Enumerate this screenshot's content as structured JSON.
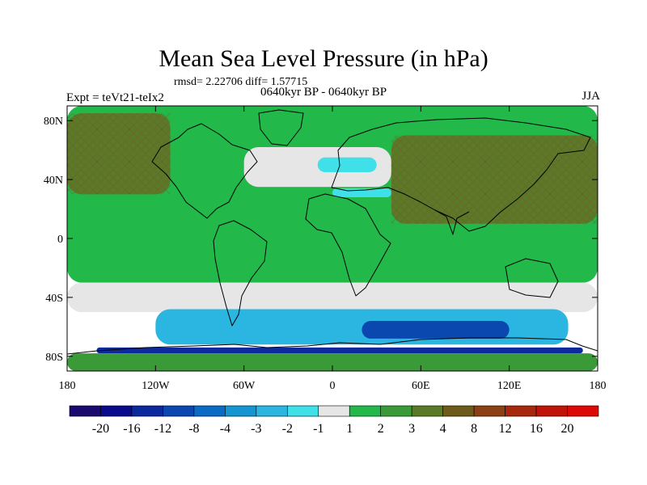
{
  "chart_data": {
    "type": "heatmap",
    "title": "Mean Sea Level Pressure (in hPa)",
    "stats_text": "rmsd= 2.22706  diff= 1.57715",
    "period_text": "0640kyr BP - 0640kyr BP",
    "experiment_text": "Expt = teVt21-teIx2",
    "season_text": "JJA",
    "xlim": [
      -180,
      180
    ],
    "ylim": [
      -90,
      90
    ],
    "x_ticks": [
      {
        "value": -180,
        "label": "180"
      },
      {
        "value": -120,
        "label": "120W"
      },
      {
        "value": -60,
        "label": "60W"
      },
      {
        "value": 0,
        "label": "0"
      },
      {
        "value": 60,
        "label": "60E"
      },
      {
        "value": 120,
        "label": "120E"
      },
      {
        "value": 180,
        "label": "180"
      }
    ],
    "y_ticks": [
      {
        "value": 80,
        "label": "80N"
      },
      {
        "value": 40,
        "label": "40N"
      },
      {
        "value": 0,
        "label": "0"
      },
      {
        "value": -40,
        "label": "40S"
      },
      {
        "value": -80,
        "label": "80S"
      }
    ],
    "colorbar": {
      "labels": [
        "-20",
        "-16",
        "-12",
        "-8",
        "-4",
        "-3",
        "-2",
        "-1",
        "1",
        "2",
        "3",
        "4",
        "8",
        "12",
        "16",
        "20"
      ],
      "colors": [
        "#1a0a6e",
        "#0a0a8c",
        "#0c2a9c",
        "#0a48b0",
        "#0a6ac4",
        "#1596d2",
        "#2ab6e0",
        "#40e0e8",
        "#e6e6e6",
        "#22b84a",
        "#3a9a38",
        "#5a7a28",
        "#6e5a1a",
        "#8c4014",
        "#a8280e",
        "#c0140a",
        "#dc0a06"
      ]
    },
    "regions": [
      {
        "name": "base-green",
        "level": "1 to 2",
        "lon": [
          -180,
          180
        ],
        "lat": [
          -30,
          90
        ]
      },
      {
        "name": "north-pacific-high",
        "level": "3 to 4",
        "lon": [
          -180,
          -110
        ],
        "lat": [
          30,
          85
        ]
      },
      {
        "name": "north-atlantic-band",
        "level": "-1 to 1",
        "lon": [
          -60,
          40
        ],
        "lat": [
          35,
          62
        ]
      },
      {
        "name": "north-atlantic-blue",
        "level": "-2 to -1",
        "lon": [
          -10,
          30
        ],
        "lat": [
          45,
          55
        ]
      },
      {
        "name": "mediterranean-blue",
        "level": "-2 to -1",
        "lon": [
          0,
          40
        ],
        "lat": [
          28,
          34
        ]
      },
      {
        "name": "asia-high",
        "level": "3 to 4",
        "lon": [
          40,
          180
        ],
        "lat": [
          10,
          70
        ]
      },
      {
        "name": "southern-white-band",
        "level": "-1 to 1",
        "lon": [
          -180,
          180
        ],
        "lat": [
          -50,
          -30
        ]
      },
      {
        "name": "southern-cyan-band",
        "level": "-3 to -1",
        "lon": [
          -120,
          160
        ],
        "lat": [
          -72,
          -48
        ]
      },
      {
        "name": "southern-deep-blue",
        "level": "-8 to -4",
        "lon": [
          20,
          120
        ],
        "lat": [
          -68,
          -56
        ]
      },
      {
        "name": "antarctic-coast-blue",
        "level": "-12 to -8",
        "lon": [
          -160,
          170
        ],
        "lat": [
          -78,
          -74
        ]
      },
      {
        "name": "antarctic-interior",
        "level": "1 to 4",
        "lon": [
          -180,
          180
        ],
        "lat": [
          -90,
          -78
        ]
      }
    ]
  }
}
